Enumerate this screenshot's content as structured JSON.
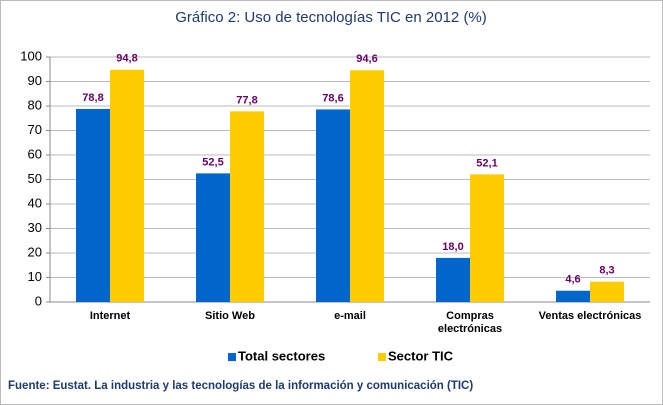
{
  "chart_data": {
    "type": "bar",
    "title": "Gráfico 2: Uso de tecnologías TIC en 2012 (%)",
    "categories": [
      "Internet",
      "Sitio Web",
      "e-mail",
      "Compras electrónicas",
      "Ventas electrónicas"
    ],
    "series": [
      {
        "name": "Total sectores",
        "color": "#0066cc",
        "values": [
          78.8,
          52.5,
          78.6,
          18.0,
          4.6
        ],
        "value_labels": [
          "78,8",
          "52,5",
          "78,6",
          "18,0",
          "4,6"
        ]
      },
      {
        "name": "Sector TIC",
        "color": "#ffcc00",
        "values": [
          94.8,
          77.8,
          94.6,
          52.1,
          8.3
        ],
        "value_labels": [
          "94,8",
          "77,8",
          "94,6",
          "52,1",
          "8,3"
        ]
      }
    ],
    "ylim": [
      0,
      100
    ],
    "yticks": [
      0,
      10,
      20,
      30,
      40,
      50,
      60,
      70,
      80,
      90,
      100
    ],
    "grid": true,
    "legend": "bottom",
    "source": "Fuente: Eustat. La industria y las tecnologías de la información y comunicación (TIC)"
  }
}
